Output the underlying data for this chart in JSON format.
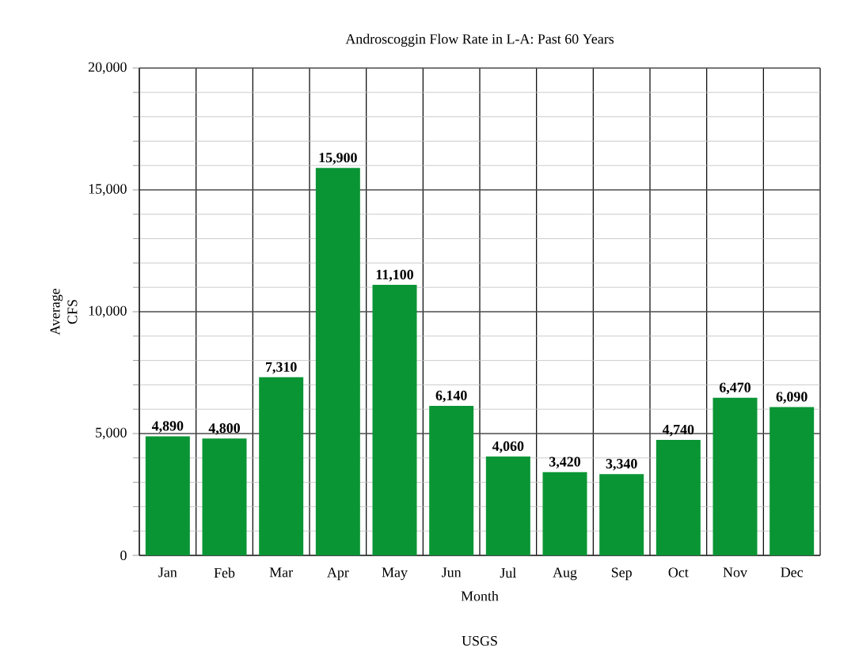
{
  "chart_data": {
    "type": "bar",
    "title": "Androscoggin Flow Rate in L-A: Past 60 Years",
    "xlabel": "Month",
    "ylabel": "Average CFS",
    "categories": [
      "Jan",
      "Feb",
      "Mar",
      "Apr",
      "May",
      "Jun",
      "Jul",
      "Aug",
      "Sep",
      "Oct",
      "Nov",
      "Dec"
    ],
    "values": [
      4890,
      4800,
      7310,
      15900,
      11100,
      6140,
      4060,
      3420,
      3340,
      4740,
      6470,
      6090
    ],
    "value_labels": [
      "4,890",
      "4,800",
      "7,310",
      "15,900",
      "11,100",
      "6,140",
      "4,060",
      "3,420",
      "3,340",
      "4,740",
      "6,470",
      "6,090"
    ],
    "color": "#0a9535",
    "ylim": [
      0,
      20000
    ],
    "yticks": [
      0,
      {
        "value": 5000,
        "label": "5,000"
      },
      {
        "value": 10000,
        "label": "10,000"
      },
      {
        "value": 15000,
        "label": "15,000"
      },
      {
        "value": 20000,
        "label": "20,000"
      }
    ],
    "grid": true,
    "annotations": [
      "USGS"
    ]
  }
}
